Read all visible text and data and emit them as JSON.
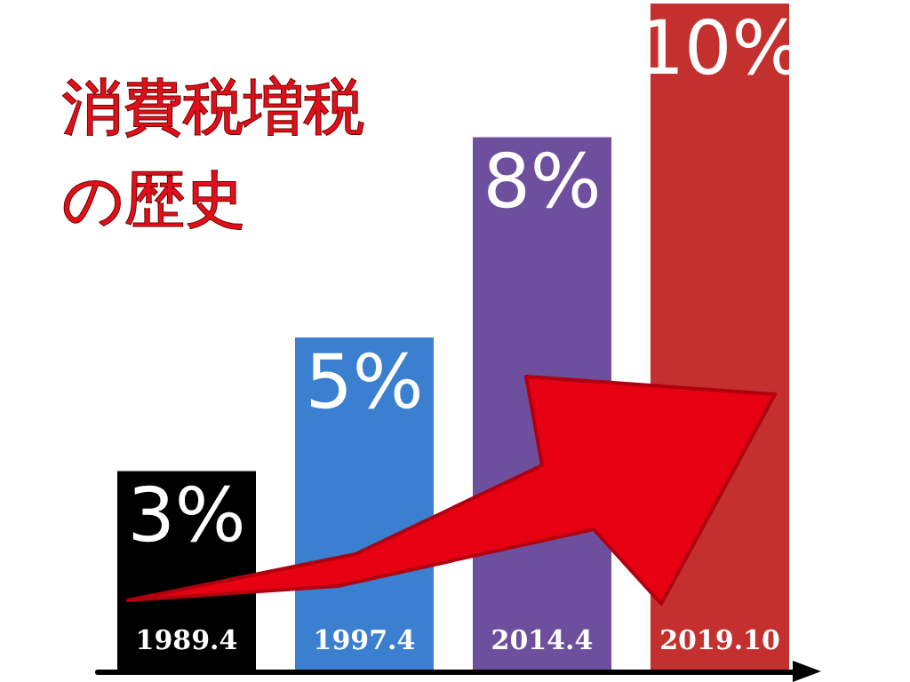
{
  "chart_data": {
    "type": "bar",
    "title": "消費税増税の歴史",
    "categories": [
      "1989.4",
      "1997.4",
      "2014.4",
      "2019.10"
    ],
    "values": [
      3,
      5,
      8,
      10
    ],
    "colors": [
      "#000000",
      "#3a7fd0",
      "#6e4f9e",
      "#c4302d"
    ],
    "value_labels": [
      "3%",
      "5%",
      "8%",
      "10%"
    ]
  }
}
